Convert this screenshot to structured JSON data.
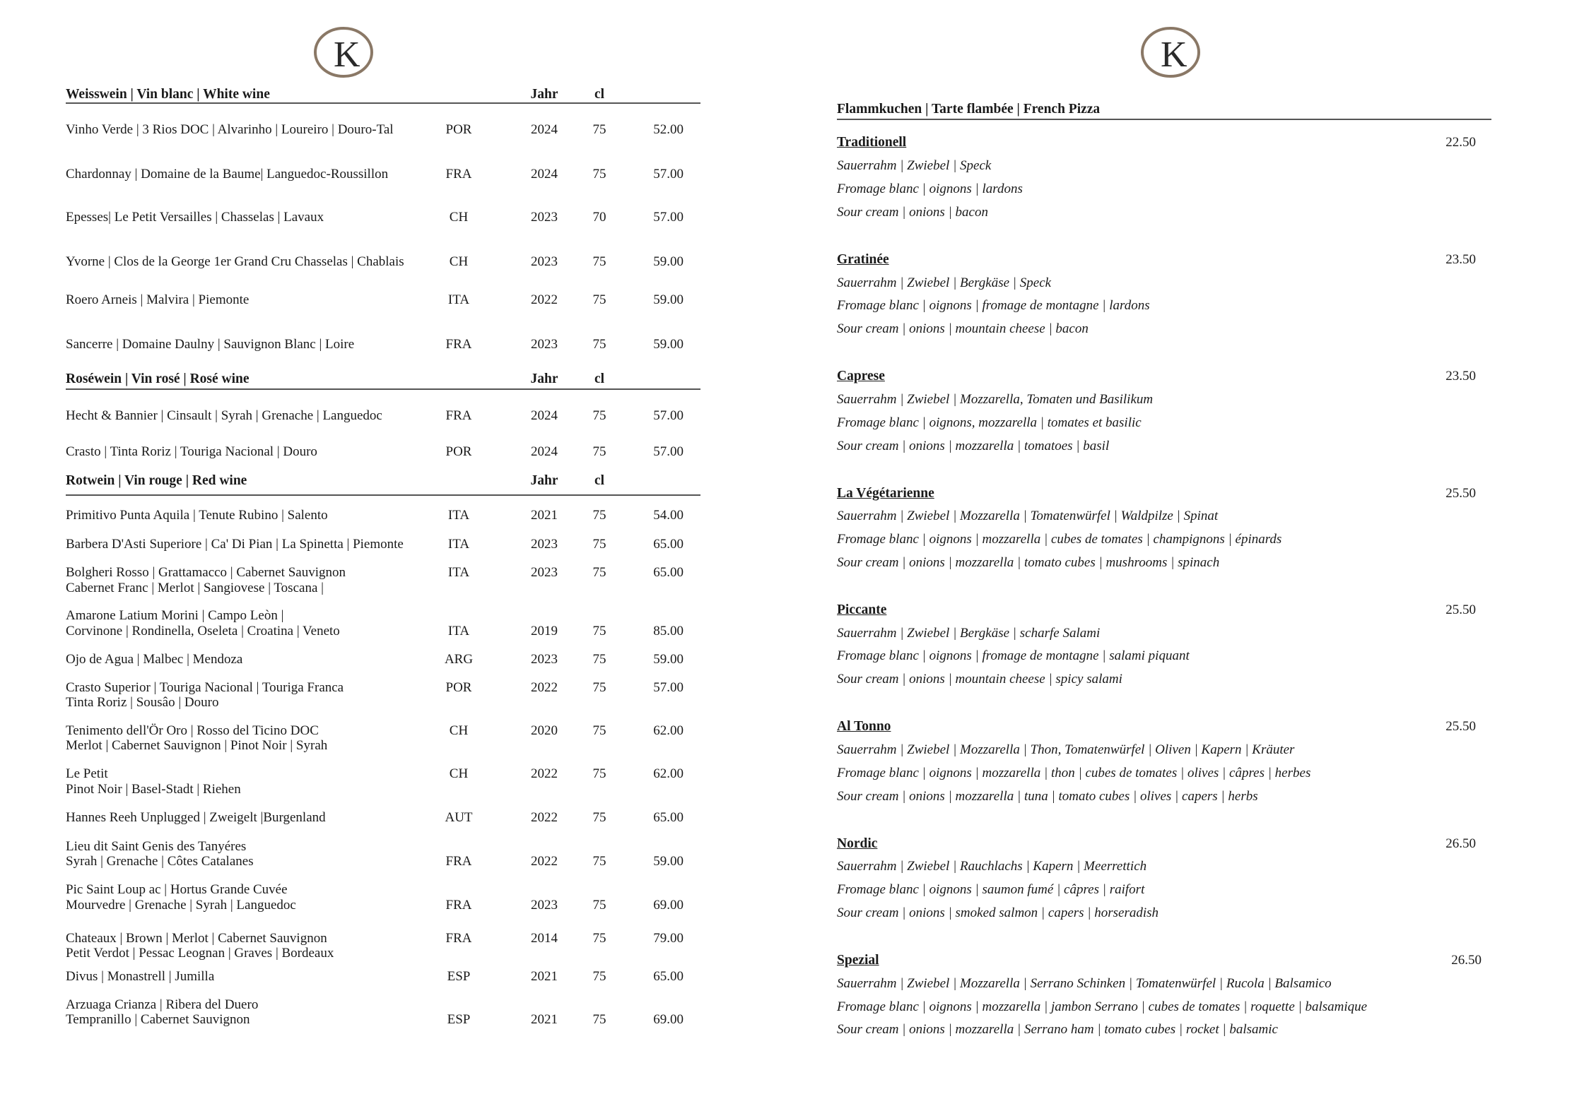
{
  "logo": {
    "letter": "K",
    "ring_color": "#8a7866"
  },
  "wine": {
    "col_year": "Jahr",
    "col_cl": "cl",
    "sections": [
      {
        "title": "Weisswein | Vin blanc | White wine",
        "items": [
          {
            "name": [
              "Vinho Verde | 3 Rios DOC | Alvarinho | Loureiro | Douro-Tal"
            ],
            "country": "POR",
            "year": "2024",
            "cl": "75",
            "price": "52.00"
          },
          {
            "name": [
              "Chardonnay | Domaine de la Baume| Languedoc-Roussillon"
            ],
            "country": "FRA",
            "year": "2024",
            "cl": "75",
            "price": "57.00"
          },
          {
            "name": [
              "Epesses| Le Petit Versailles | Chasselas | Lavaux"
            ],
            "country": "CH",
            "year": "2023",
            "cl": "70",
            "price": "57.00"
          },
          {
            "name": [
              "Yvorne | Clos de la George 1er Grand Cru Chasselas | Chablais"
            ],
            "country": "CH",
            "year": "2023",
            "cl": "75",
            "price": "59.00"
          },
          {
            "name": [
              "Roero Arneis | Malvira | Piemonte"
            ],
            "country": "ITA",
            "year": "2022",
            "cl": "75",
            "price": "59.00"
          },
          {
            "name": [
              "Sancerre | Domaine Daulny | Sauvignon Blanc | Loire"
            ],
            "country": "FRA",
            "year": "2023",
            "cl": "75",
            "price": "59.00"
          }
        ]
      },
      {
        "title": "Roséwein | Vin rosé | Rosé wine",
        "items": [
          {
            "name": [
              "Hecht & Bannier | Cinsault | Syrah | Grenache | Languedoc"
            ],
            "country": "FRA",
            "year": "2024",
            "cl": "75",
            "price": "57.00"
          },
          {
            "name": [
              "Crasto | Tinta Roriz | Touriga Nacional | Douro"
            ],
            "country": "POR",
            "year": "2024",
            "cl": "75",
            "price": "57.00"
          }
        ]
      },
      {
        "title": "Rotwein | Vin rouge | Red wine",
        "items": [
          {
            "name": [
              "Primitivo Punta Aquila | Tenute Rubino | Salento"
            ],
            "country": "ITA",
            "year": "2021",
            "cl": "75",
            "price": "54.00"
          },
          {
            "name": [
              "Barbera D'Asti Superiore | Ca' Di Pian | La Spinetta | Piemonte"
            ],
            "country": "ITA",
            "year": "2023",
            "cl": "75",
            "price": "65.00"
          },
          {
            "name": [
              "Bolgheri Rosso | Grattamacco | Cabernet Sauvignon",
              "Cabernet Franc | Merlot | Sangiovese | Toscana |"
            ],
            "country": "ITA",
            "year": "2023",
            "cl": "75",
            "price": "65.00"
          },
          {
            "name": [
              "Amarone Latium Morini | Campo Leòn |",
              "Corvinone | Rondinella, Oseleta | Croatina | Veneto"
            ],
            "country": "ITA",
            "year": "2019",
            "cl": "75",
            "price": "85.00"
          },
          {
            "name": [
              "Ojo de Agua | Malbec | Mendoza"
            ],
            "country": "ARG",
            "year": "2023",
            "cl": "75",
            "price": "59.00"
          },
          {
            "name": [
              "Crasto Superior | Touriga Nacional | Touriga Franca",
              "Tinta Roriz | Sousâo | Douro"
            ],
            "country": "POR",
            "year": "2022",
            "cl": "75",
            "price": "57.00"
          },
          {
            "name": [
              "Tenimento dell'Ör Oro | Rosso del Ticino DOC",
              "Merlot | Cabernet Sauvignon | Pinot Noir | Syrah"
            ],
            "country": "CH",
            "year": "2020",
            "cl": "75",
            "price": "62.00"
          },
          {
            "name": [
              "Le Petit",
              "Pinot Noir | Basel-Stadt | Riehen"
            ],
            "country": "CH",
            "year": "2022",
            "cl": "75",
            "price": "62.00"
          },
          {
            "name": [
              "Hannes Reeh Unplugged | Zweigelt |Burgenland"
            ],
            "country": "AUT",
            "year": "2022",
            "cl": "75",
            "price": "65.00"
          },
          {
            "name": [
              "Lieu dit Saint Genis des Tanyéres",
              "Syrah | Grenache | Côtes Catalanes"
            ],
            "country": "FRA",
            "year": "2022",
            "cl": "75",
            "price": "59.00"
          },
          {
            "name": [
              "Pic Saint Loup ac | Hortus Grande Cuvée",
              "Mourvedre | Grenache | Syrah | Languedoc"
            ],
            "country": "FRA",
            "year": "2023",
            "cl": "75",
            "price": "69.00"
          },
          {
            "name": [
              "Chateaux | Brown | Merlot | Cabernet Sauvignon",
              "Petit Verdot | Pessac Leognan | Graves | Bordeaux"
            ],
            "country": "FRA",
            "year": "2014",
            "cl": "75",
            "price": "79.00"
          },
          {
            "name": [
              "Divus | Monastrell | Jumilla"
            ],
            "country": "ESP",
            "year": "2021",
            "cl": "75",
            "price": "65.00"
          },
          {
            "name": [
              "Arzuaga Crianza | Ribera del Duero",
              "Tempranillo | Cabernet Sauvignon"
            ],
            "country": "ESP",
            "year": "2021",
            "cl": "75",
            "price": "69.00"
          }
        ]
      }
    ]
  },
  "flammkuchen": {
    "title": "Flammkuchen | Tarte flambée | French Pizza",
    "items": [
      {
        "name": "Traditionell",
        "price": "22.50",
        "lines": [
          "Sauerrahm | Zwiebel | Speck",
          "Fromage blanc | oignons | lardons",
          "Sour cream | onions | bacon"
        ]
      },
      {
        "name": "Gratinée",
        "price": "23.50",
        "lines": [
          "Sauerrahm | Zwiebel | Bergkäse | Speck",
          "Fromage blanc | oignons | fromage de montagne | lardons",
          "Sour cream | onions | mountain cheese | bacon"
        ]
      },
      {
        "name": "Caprese",
        "price": "23.50",
        "lines": [
          "Sauerrahm | Zwiebel | Mozzarella, Tomaten und Basilikum",
          "Fromage blanc | oignons, mozzarella | tomates et basilic",
          "Sour cream | onions | mozzarella | tomatoes | basil"
        ]
      },
      {
        "name": "La Végétarienne",
        "price": "25.50",
        "lines": [
          "Sauerrahm | Zwiebel | Mozzarella | Tomatenwürfel | Waldpilze | Spinat",
          "Fromage blanc | oignons | mozzarella | cubes de tomates | champignons | épinards",
          "Sour cream | onions | mozzarella | tomato cubes | mushrooms | spinach"
        ]
      },
      {
        "name": "Piccante",
        "price": "25.50",
        "lines": [
          "Sauerrahm | Zwiebel | Bergkäse | scharfe Salami",
          "Fromage blanc | oignons | fromage de montagne | salami piquant",
          "Sour cream | onions | mountain cheese | spicy salami"
        ]
      },
      {
        "name": "Al Tonno",
        "price": "25.50",
        "lines": [
          "Sauerrahm | Zwiebel | Mozzarella | Thon, Tomatenwürfel | Oliven | Kapern | Kräuter",
          "Fromage blanc | oignons | mozzarella | thon | cubes de tomates | olives | câpres | herbes",
          "Sour cream | onions | mozzarella | tuna | tomato cubes | olives | capers | herbs"
        ]
      },
      {
        "name": "Nordic",
        "price": "26.50",
        "lines": [
          "Sauerrahm | Zwiebel | Rauchlachs | Kapern | Meerrettich",
          "Fromage blanc | oignons | saumon fumé | câpres | raifort",
          "Sour cream | onions | smoked salmon | capers | horseradish"
        ]
      },
      {
        "name": "Spezial",
        "price": "26.50",
        "lines": [
          "Sauerrahm | Zwiebel | Mozzarella | Serrano Schinken | Tomatenwürfel | Rucola | Balsamico",
          "Fromage blanc | oignons | mozzarella | jambon Serrano | cubes de tomates | roquette | balsamique",
          "Sour cream | onions | mozzarella | Serrano ham | tomato cubes | rocket | balsamic"
        ]
      }
    ]
  }
}
